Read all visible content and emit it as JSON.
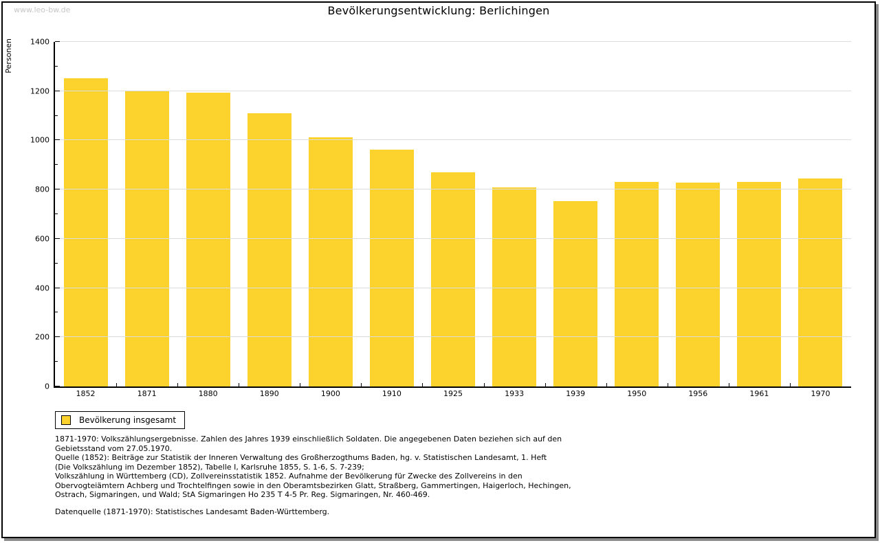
{
  "watermark": "www.leo-bw.de",
  "title": "Bevölkerungsentwicklung: Berlichingen",
  "chart_data": {
    "type": "bar",
    "title": "Bevölkerungsentwicklung: Berlichingen",
    "xlabel": "",
    "ylabel": "Personen",
    "categories": [
      "1852",
      "1871",
      "1880",
      "1890",
      "1900",
      "1910",
      "1925",
      "1933",
      "1939",
      "1950",
      "1956",
      "1961",
      "1970"
    ],
    "values": [
      1252,
      1201,
      1194,
      1110,
      1011,
      961,
      871,
      808,
      753,
      831,
      827,
      831,
      844
    ],
    "series_name": "Bevölkerung insgesamt",
    "ylim": [
      0,
      1400
    ],
    "ytick_major_step": 200,
    "ytick_minor_step": 100,
    "y_tick_labels": [
      "0",
      "200",
      "400",
      "600",
      "800",
      "1000",
      "1200",
      "1400"
    ],
    "grid": true,
    "legend_position": "bottom-left",
    "bar_color": "#FCD32D",
    "gridline_color": "#dcdcdc"
  },
  "legend": {
    "label": "Bevölkerung insgesamt",
    "swatch_color": "#FCD32D"
  },
  "footer": {
    "footnote_lines": [
      "1871-1970: Volkszählungsergebnisse. Zahlen des Jahres 1939 einschließlich Soldaten. Die angegebenen Daten beziehen sich auf den",
      "Gebietsstand vom 27.05.1970.",
      "Quelle (1852): Beiträge zur Statistik der Inneren Verwaltung des Großherzogthums Baden, hg. v. Statistischen Landesamt, 1. Heft",
      "(Die Volkszählung im Dezember 1852), Tabelle I, Karlsruhe 1855, S. 1-6, S. 7-239;",
      "Volkszählung in Württemberg (CD), Zollvereinsstatistik 1852. Aufnahme der Bevölkerung für Zwecke des Zollvereins in den",
      "Obervogteiämtern Achberg und Trochtelfingen sowie in den Oberamtsbezirken Glatt, Straßberg, Gammertingen, Haigerloch, Hechingen,",
      "Ostrach, Sigmaringen, und Wald; StA Sigmaringen Ho 235 T 4-5 Pr. Reg. Sigmaringen, Nr. 460-469."
    ],
    "datasource": "Datenquelle (1871-1970): Statistisches Landesamt Baden-Württemberg."
  }
}
